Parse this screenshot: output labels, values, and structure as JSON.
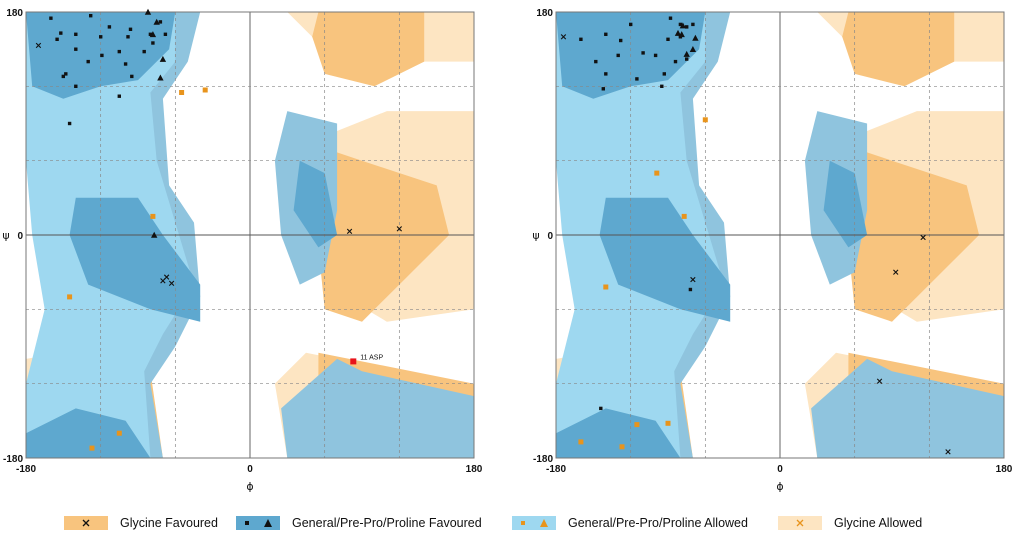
{
  "colors": {
    "general_favoured": "#5ea8cf",
    "general_allowed": "#9ed8f0",
    "general_outer": "#8fc4de",
    "glycine_favoured": "#f8c47e",
    "glycine_allowed": "#fde5c2",
    "outlier": "#e8141b",
    "point_general": "#111111",
    "point_glycine": "#e8941c"
  },
  "chart_data": [
    {
      "type": "scatter",
      "title": "",
      "xlabel": "ϕ",
      "ylabel": "ψ",
      "xlim": [
        -180,
        180
      ],
      "ylim": [
        -180,
        180
      ],
      "x_ticks": [
        "-180",
        "0",
        "180"
      ],
      "y_ticks": [
        "180",
        "0",
        "-180"
      ],
      "grid": true,
      "series": [
        {
          "name": "General/Pre-Pro/Proline Favoured",
          "marker": "square",
          "points": [
            [
              -155,
              158
            ],
            [
              -128,
              177
            ],
            [
              -152,
              163
            ],
            [
              -98,
              160
            ],
            [
              -105,
              148
            ],
            [
              -113,
              168
            ],
            [
              -120,
              160
            ],
            [
              -140,
              150
            ],
            [
              -160,
              175
            ],
            [
              -95,
              128
            ],
            [
              -130,
              140
            ],
            [
              -140,
              120
            ],
            [
              -100,
              138
            ],
            [
              -148,
              130
            ],
            [
              -80,
              162
            ],
            [
              -85,
              148
            ],
            [
              -150,
              128
            ],
            [
              -140,
              162
            ],
            [
              -78,
              155
            ],
            [
              -68,
              162
            ],
            [
              -105,
              112
            ],
            [
              -145,
              90
            ],
            [
              -96,
              166
            ],
            [
              -72,
              172
            ],
            [
              -119,
              145
            ]
          ]
        },
        {
          "name": "General/Pre-Pro/Proline Favoured",
          "marker": "triangle",
          "points": [
            [
              -82,
              180
            ],
            [
              -70,
              142
            ],
            [
              -72,
              127
            ],
            [
              -78,
              162
            ],
            [
              -75,
              172
            ],
            [
              -77,
              0
            ]
          ]
        },
        {
          "name": "General/Pre-Pro/Proline Allowed",
          "marker": "square",
          "points": [
            [
              -145,
              -50
            ],
            [
              -55,
              115
            ],
            [
              -36,
              117
            ],
            [
              -78,
              15
            ],
            [
              -105,
              -160
            ],
            [
              -127,
              -172
            ]
          ]
        },
        {
          "name": "Glycine Favoured",
          "marker": "x",
          "points": [
            [
              -170,
              153
            ],
            [
              -67,
              -34
            ],
            [
              -70,
              -37
            ],
            [
              -63,
              -39
            ],
            [
              80,
              3
            ],
            [
              120,
              5
            ]
          ]
        },
        {
          "name": "outlier",
          "marker": "square",
          "points": [
            [
              83,
              -102
            ]
          ],
          "annotations": [
            "11 ASP"
          ]
        }
      ]
    },
    {
      "type": "scatter",
      "title": "",
      "xlabel": "ϕ",
      "ylabel": "ψ",
      "xlim": [
        -180,
        180
      ],
      "ylim": [
        -180,
        180
      ],
      "x_ticks": [
        "-180",
        "0",
        "180"
      ],
      "y_ticks": [
        "180",
        "0",
        "-180"
      ],
      "grid": true,
      "series": [
        {
          "name": "General/Pre-Pro/Proline Favoured",
          "marker": "square",
          "points": [
            [
              -160,
              158
            ],
            [
              -140,
              162
            ],
            [
              -130,
              145
            ],
            [
              -140,
              130
            ],
            [
              -100,
              145
            ],
            [
              -80,
              170
            ],
            [
              -90,
              158
            ],
            [
              -75,
              168
            ],
            [
              -128,
              157
            ],
            [
              -148,
              140
            ],
            [
              -142,
              118
            ],
            [
              -110,
              147
            ],
            [
              -93,
              130
            ],
            [
              -95,
              120
            ],
            [
              -84,
              140
            ],
            [
              -70,
              170
            ],
            [
              -88,
              175
            ],
            [
              -75,
              142
            ],
            [
              -115,
              126
            ],
            [
              -80,
              160
            ],
            [
              -120,
              170
            ],
            [
              -144,
              -140
            ],
            [
              -72,
              -44
            ]
          ]
        },
        {
          "name": "General/Pre-Pro/Proline Favoured",
          "marker": "triangle",
          "points": [
            [
              -78,
              169
            ],
            [
              -82,
              163
            ],
            [
              -75,
              146
            ],
            [
              -68,
              159
            ],
            [
              -79,
              162
            ],
            [
              -70,
              150
            ]
          ]
        },
        {
          "name": "General/Pre-Pro/Proline Allowed",
          "marker": "square",
          "points": [
            [
              -140,
              -42
            ],
            [
              -99,
              50
            ],
            [
              -77,
              15
            ],
            [
              -60,
              93
            ],
            [
              -160,
              -167
            ],
            [
              -127,
              -171
            ],
            [
              -90,
              -152
            ],
            [
              -115,
              -153
            ]
          ]
        },
        {
          "name": "Glycine Favoured",
          "marker": "x",
          "points": [
            [
              -174,
              160
            ],
            [
              -70,
              -36
            ],
            [
              115,
              -2
            ],
            [
              93,
              -30
            ],
            [
              80,
              -118
            ],
            [
              135,
              -175
            ]
          ]
        }
      ]
    }
  ],
  "legend": {
    "placement": "bottom",
    "items": [
      {
        "label": "Glycine Favoured"
      },
      {
        "label": "General/Pre-Pro/Proline Favoured"
      },
      {
        "label": "General/Pre-Pro/Proline Allowed"
      },
      {
        "label": "Glycine Allowed"
      }
    ]
  }
}
